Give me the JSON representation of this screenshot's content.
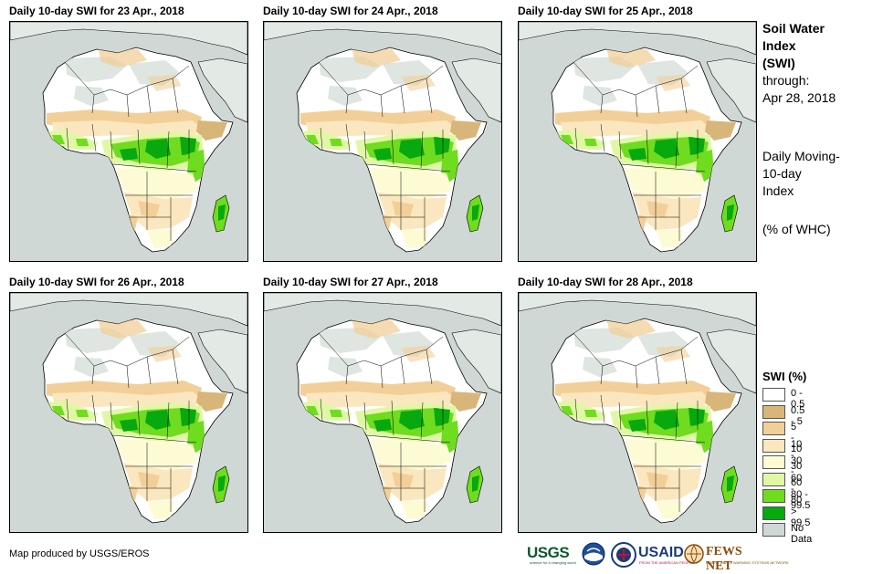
{
  "panels": [
    {
      "title": "Daily 10-day  SWI for 23 Apr., 2018"
    },
    {
      "title": "Daily 10-day  SWI for 24 Apr., 2018"
    },
    {
      "title": "Daily 10-day  SWI for 25 Apr., 2018"
    },
    {
      "title": "Daily 10-day  SWI for 26 Apr., 2018"
    },
    {
      "title": "Daily 10-day  SWI for 27 Apr., 2018"
    },
    {
      "title": "Daily 10-day  SWI for 28 Apr., 2018"
    }
  ],
  "side": {
    "title_line1": "Soil Water",
    "title_line2": "Index",
    "title_line3": "(SWI)",
    "through_label": "through:",
    "through_date": "Apr 28, 2018",
    "desc_line1": "Daily Moving-",
    "desc_line2": "10-day",
    "desc_line3": "Index",
    "units": "(% of WHC)"
  },
  "legend": {
    "title": "SWI (%)",
    "items": [
      {
        "label": "0 - 0.5",
        "color": "#ffffff"
      },
      {
        "label": "0.5 - 5",
        "color": "#d8b67a"
      },
      {
        "label": "5 - 10",
        "color": "#f2cf98"
      },
      {
        "label": "10 - 30",
        "color": "#fbe7bf"
      },
      {
        "label": "30 - 60",
        "color": "#fdfbd4"
      },
      {
        "label": "60 - 80",
        "color": "#e1f7a6"
      },
      {
        "label": "80 - 99.5",
        "color": "#6fdc1f"
      },
      {
        "label": "> 99.5",
        "color": "#07a90e"
      },
      {
        "label": "No Data",
        "color": "#cfd8d4"
      }
    ]
  },
  "credit": "Map produced by USGS/EROS",
  "logos": {
    "usgs": "USGS",
    "usgs_tag": "science for a changing world",
    "noaa": "NOAA",
    "usaid": "USAID",
    "usaid_tag": "FROM THE AMERICAN PEOPLE",
    "fews": "FEWS NET",
    "fews_tag": "FAMINE EARLY WARNING SYSTEMS NETWORK"
  }
}
